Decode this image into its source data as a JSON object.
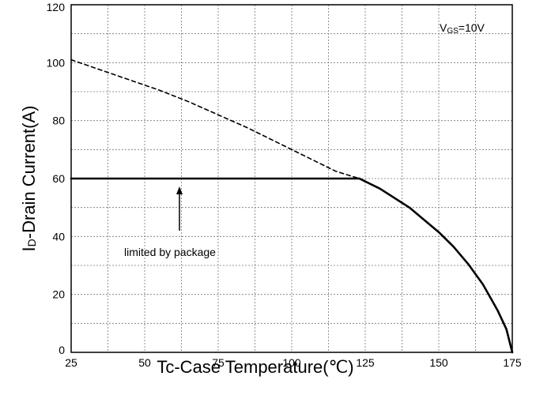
{
  "chart_data": {
    "type": "line",
    "xlabel": "Tc-Case Temperature(℃)",
    "ylabel": "ID-Drain Current(A)",
    "ylabel_main": "I",
    "ylabel_sub": "D",
    "ylabel_rest": "-Drain Current(A)",
    "xlim": [
      25,
      175
    ],
    "ylim": [
      0,
      120
    ],
    "x_ticks": [
      25,
      50,
      75,
      100,
      125,
      150,
      175
    ],
    "y_ticks": [
      0,
      20,
      40,
      60,
      80,
      100,
      120
    ],
    "grid": true,
    "annotations": {
      "condition_main": "V",
      "condition_sub": "GS",
      "condition_rest": "=10V",
      "package_label": "limited by package"
    },
    "series": [
      {
        "style": "dashed",
        "x": [
          25,
          35,
          45,
          55,
          65,
          75,
          85,
          95,
          105,
          115,
          123
        ],
        "y": [
          101,
          97.5,
          94,
          90.5,
          86.5,
          82,
          77.5,
          72.5,
          67.5,
          62.5,
          60
        ]
      },
      {
        "style": "solid",
        "x": [
          25,
          123
        ],
        "y": [
          60,
          60
        ]
      },
      {
        "style": "solid",
        "x": [
          123,
          130,
          140,
          150,
          155,
          160,
          165,
          170,
          173,
          175
        ],
        "y": [
          60,
          56.5,
          50,
          41.5,
          36.5,
          30.5,
          23.5,
          14.5,
          8,
          0
        ]
      }
    ]
  }
}
